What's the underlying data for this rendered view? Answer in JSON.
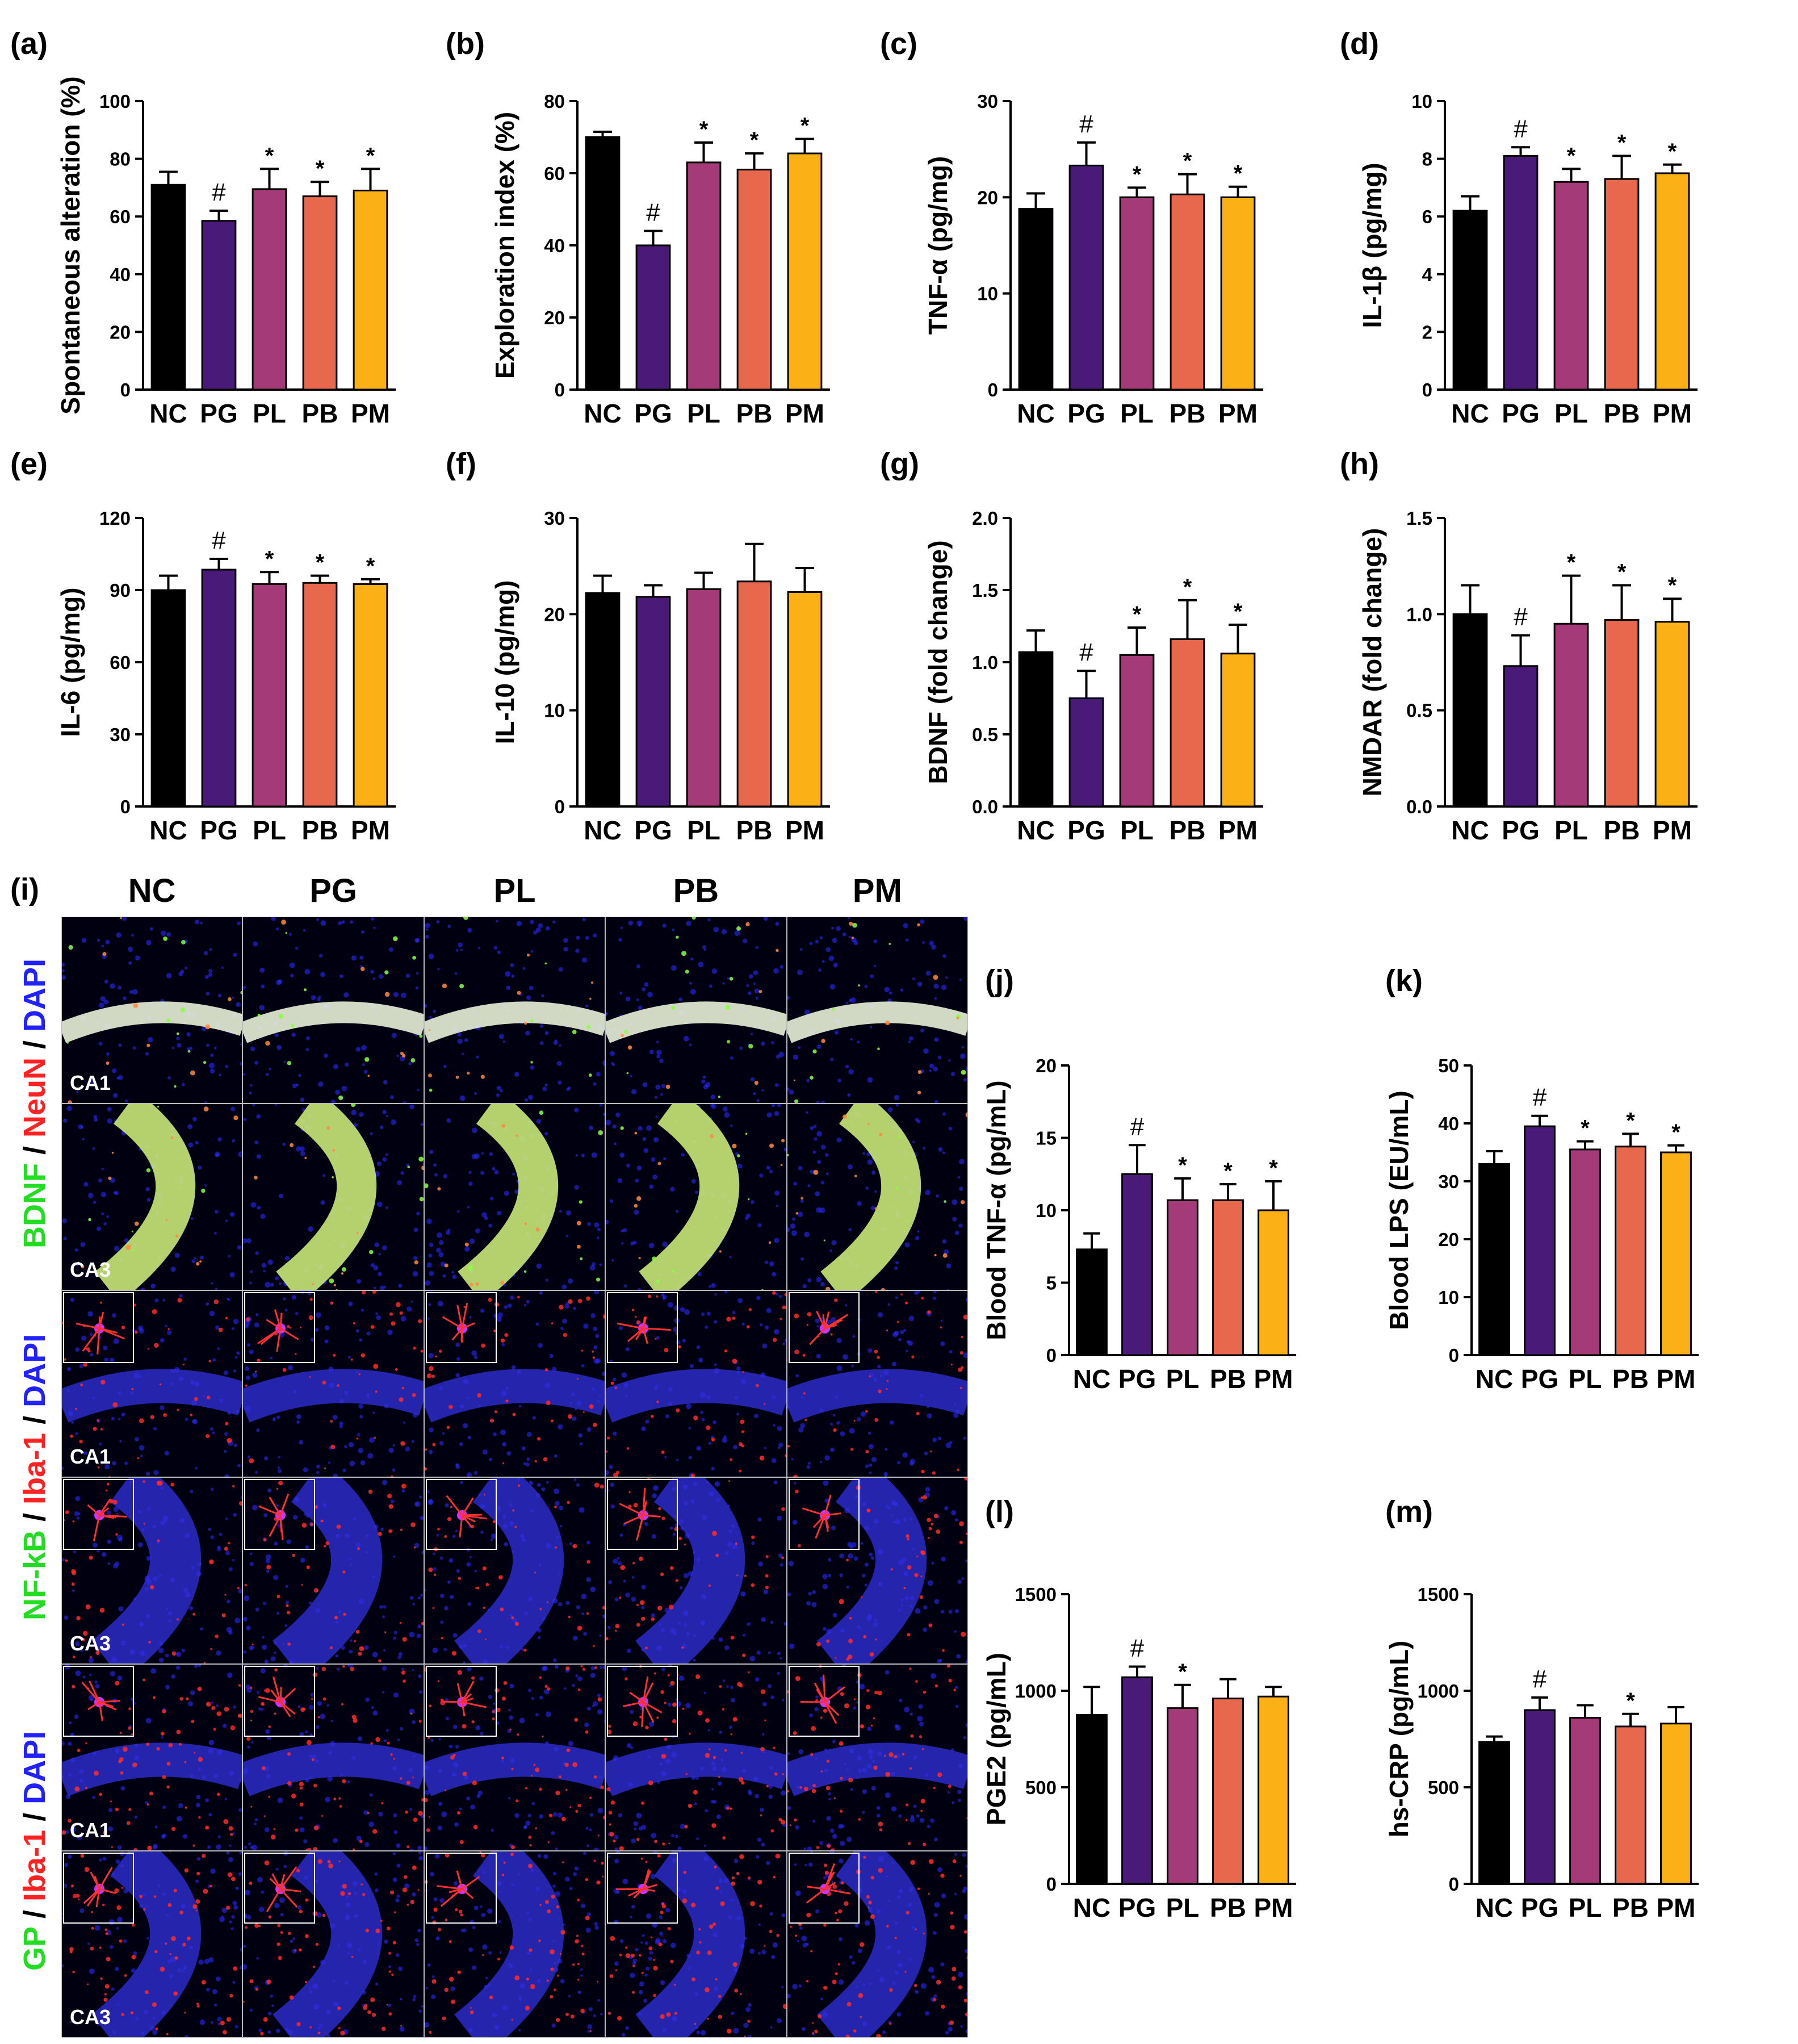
{
  "colors": {
    "NC": "#000000",
    "PG": "#4a1a78",
    "PL": "#a43a78",
    "PB": "#e8684d",
    "PM": "#fbb116",
    "green": "#22dd22",
    "red": "#ff2222",
    "blue": "#2222ff"
  },
  "chart_data": [
    {
      "id": "a",
      "letter": "(a)",
      "type": "bar",
      "categories": [
        "NC",
        "PG",
        "PL",
        "PB",
        "PM"
      ],
      "values": [
        71,
        58.5,
        69.5,
        67,
        69
      ],
      "errors": [
        4.5,
        3.5,
        7,
        5,
        7.5
      ],
      "marks": [
        "",
        "#",
        "*",
        "*",
        "*"
      ],
      "ylabel": "Spontaneous alteration (%)",
      "ylim": [
        0,
        100
      ],
      "ticks": [
        0,
        20,
        40,
        60,
        80,
        100
      ]
    },
    {
      "id": "b",
      "letter": "(b)",
      "type": "bar",
      "categories": [
        "NC",
        "PG",
        "PL",
        "PB",
        "PM"
      ],
      "values": [
        70,
        40,
        63,
        61,
        65.5
      ],
      "errors": [
        1.5,
        4,
        5.5,
        4.5,
        4
      ],
      "marks": [
        "",
        "#",
        "*",
        "*",
        "*"
      ],
      "ylabel": "Exploration index (%)",
      "ylim": [
        0,
        80
      ],
      "ticks": [
        0,
        20,
        40,
        60,
        80
      ]
    },
    {
      "id": "c",
      "letter": "(c)",
      "type": "bar",
      "categories": [
        "NC",
        "PG",
        "PL",
        "PB",
        "PM"
      ],
      "values": [
        18.8,
        23.3,
        20,
        20.3,
        20
      ],
      "errors": [
        1.6,
        2.4,
        1,
        2.1,
        1.1
      ],
      "marks": [
        "",
        "#",
        "*",
        "*",
        "*"
      ],
      "ylabel": "TNF-α (pg/mg)",
      "ylim": [
        0,
        30
      ],
      "ticks": [
        0,
        10,
        20,
        30
      ]
    },
    {
      "id": "d",
      "letter": "(d)",
      "type": "bar",
      "categories": [
        "NC",
        "PG",
        "PL",
        "PB",
        "PM"
      ],
      "values": [
        6.2,
        8.1,
        7.2,
        7.3,
        7.5
      ],
      "errors": [
        0.5,
        0.3,
        0.45,
        0.8,
        0.3
      ],
      "marks": [
        "",
        "#",
        "*",
        "*",
        "*"
      ],
      "ylabel": "IL-1β (pg/mg)",
      "ylim": [
        0,
        10
      ],
      "ticks": [
        0,
        2,
        4,
        6,
        8,
        10
      ]
    },
    {
      "id": "e",
      "letter": "(e)",
      "type": "bar",
      "categories": [
        "NC",
        "PG",
        "PL",
        "PB",
        "PM"
      ],
      "values": [
        90,
        98.5,
        92.5,
        93,
        92.5
      ],
      "errors": [
        6,
        4.5,
        5,
        3,
        2
      ],
      "marks": [
        "",
        "#",
        "*",
        "*",
        "*"
      ],
      "ylabel": "IL-6 (pg/mg)",
      "ylim": [
        0,
        120
      ],
      "ticks": [
        0,
        30,
        60,
        90,
        120
      ]
    },
    {
      "id": "f",
      "letter": "(f)",
      "type": "bar",
      "categories": [
        "NC",
        "PG",
        "PL",
        "PB",
        "PM"
      ],
      "values": [
        22.2,
        21.8,
        22.6,
        23.4,
        22.3
      ],
      "errors": [
        1.8,
        1.2,
        1.7,
        3.9,
        2.5
      ],
      "marks": [
        "",
        "",
        "",
        "",
        ""
      ],
      "ylabel": "IL-10 (pg/mg)",
      "ylim": [
        0,
        30
      ],
      "ticks": [
        0,
        10,
        20,
        30
      ]
    },
    {
      "id": "g",
      "letter": "(g)",
      "type": "bar",
      "categories": [
        "NC",
        "PG",
        "PL",
        "PB",
        "PM"
      ],
      "values": [
        1.07,
        0.75,
        1.05,
        1.16,
        1.06
      ],
      "errors": [
        0.15,
        0.19,
        0.19,
        0.27,
        0.2
      ],
      "marks": [
        "",
        "#",
        "*",
        "*",
        "*"
      ],
      "ylabel": "BDNF (fold change)",
      "ylim": [
        0,
        2
      ],
      "ticks": [
        "0.0",
        "0.5",
        "1.0",
        "1.5",
        "2.0"
      ]
    },
    {
      "id": "h",
      "letter": "(h)",
      "type": "bar",
      "categories": [
        "NC",
        "PG",
        "PL",
        "PB",
        "PM"
      ],
      "values": [
        1.0,
        0.73,
        0.95,
        0.97,
        0.96
      ],
      "errors": [
        0.15,
        0.16,
        0.25,
        0.18,
        0.12
      ],
      "marks": [
        "",
        "#",
        "*",
        "*",
        "*"
      ],
      "ylabel": "NMDAR  (fold change)",
      "ylim": [
        0,
        1.5
      ],
      "ticks": [
        "0.0",
        "0.5",
        "1.0",
        "1.5"
      ]
    },
    {
      "id": "j",
      "letter": "(j)",
      "type": "bar",
      "categories": [
        "NC",
        "PG",
        "PL",
        "PB",
        "PM"
      ],
      "values": [
        7.3,
        12.5,
        10.7,
        10.7,
        10
      ],
      "errors": [
        1.1,
        2,
        1.5,
        1.1,
        2
      ],
      "marks": [
        "",
        "#",
        "*",
        "*",
        "*"
      ],
      "ylabel": "Blood TNF-α (pg/mL)",
      "ylim": [
        0,
        20
      ],
      "ticks": [
        0,
        5,
        10,
        15,
        20
      ]
    },
    {
      "id": "k",
      "letter": "(k)",
      "type": "bar",
      "categories": [
        "NC",
        "PG",
        "PL",
        "PB",
        "PM"
      ],
      "values": [
        33,
        39.5,
        35.5,
        36,
        35
      ],
      "errors": [
        2.2,
        1.8,
        1.4,
        2.2,
        1.2
      ],
      "marks": [
        "",
        "#",
        "*",
        "*",
        "*"
      ],
      "ylabel": "Blood LPS (EU/mL)",
      "ylim": [
        0,
        50
      ],
      "ticks": [
        0,
        10,
        20,
        30,
        40,
        50
      ]
    },
    {
      "id": "l",
      "letter": "(l)",
      "type": "bar",
      "categories": [
        "NC",
        "PG",
        "PL",
        "PB",
        "PM"
      ],
      "values": [
        875,
        1070,
        910,
        960,
        970
      ],
      "errors": [
        145,
        55,
        120,
        100,
        50
      ],
      "marks": [
        "",
        "#",
        "*",
        "",
        ""
      ],
      "ylabel": "PGE2 (pg/mL)",
      "ylim": [
        0,
        1500
      ],
      "ticks": [
        0,
        500,
        1000,
        1500
      ]
    },
    {
      "id": "m",
      "letter": "(m)",
      "type": "bar",
      "categories": [
        "NC",
        "PG",
        "PL",
        "PB",
        "PM"
      ],
      "values": [
        735,
        900,
        860,
        815,
        830
      ],
      "errors": [
        28,
        65,
        65,
        65,
        85
      ],
      "marks": [
        "",
        "#",
        "",
        "*",
        ""
      ],
      "ylabel": "hs-CRP (pg/mL)",
      "ylim": [
        0,
        1500
      ],
      "ticks": [
        0,
        500,
        1000,
        1500
      ]
    }
  ],
  "micrographs": {
    "letter": "(i)",
    "columns": [
      "NC",
      "PG",
      "PL",
      "PB",
      "PM"
    ],
    "regions": [
      "CA1",
      "CA3"
    ],
    "stain_groups": [
      {
        "parts": [
          {
            "text": "BDNF",
            "color": "green"
          },
          {
            "text": " / ",
            "color": "black"
          },
          {
            "text": "NeuN",
            "color": "red"
          },
          {
            "text": " / ",
            "color": "black"
          },
          {
            "text": "DAPI",
            "color": "blue"
          }
        ]
      },
      {
        "parts": [
          {
            "text": "NF-kB",
            "color": "green"
          },
          {
            "text": " / ",
            "color": "black"
          },
          {
            "text": "Iba-1",
            "color": "red"
          },
          {
            "text": " / ",
            "color": "black"
          },
          {
            "text": "DAPI",
            "color": "blue"
          }
        ]
      },
      {
        "parts": [
          {
            "text": "GP",
            "color": "green"
          },
          {
            "text": " / ",
            "color": "black"
          },
          {
            "text": "Iba-1",
            "color": "red"
          },
          {
            "text": " / ",
            "color": "black"
          },
          {
            "text": "DAPI",
            "color": "blue"
          }
        ]
      }
    ]
  }
}
